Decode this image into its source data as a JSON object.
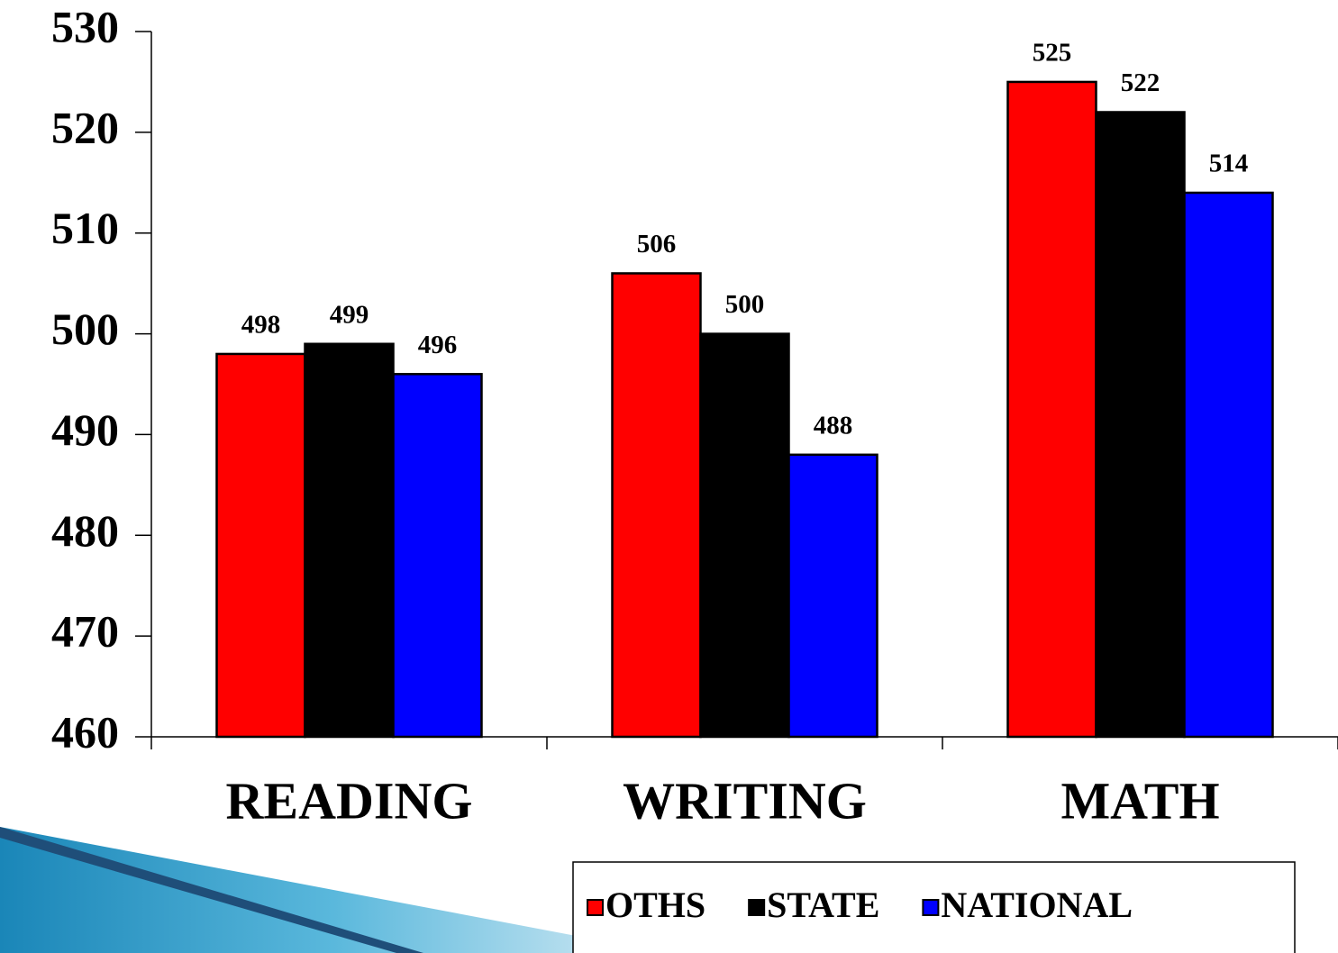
{
  "chart_data": {
    "type": "bar",
    "categories": [
      "READING",
      "WRITING",
      "MATH"
    ],
    "series": [
      {
        "name": "OTHS",
        "color": "#ff0000",
        "values": [
          498,
          506,
          525
        ]
      },
      {
        "name": "STATE",
        "color": "#000000",
        "values": [
          499,
          500,
          522
        ]
      },
      {
        "name": "NATIONAL",
        "color": "#0000ff",
        "values": [
          496,
          488,
          514
        ]
      }
    ],
    "ylim": [
      460,
      530
    ],
    "yticks": [
      460,
      470,
      480,
      490,
      500,
      510,
      520,
      530
    ],
    "grid": false,
    "legend": "bottom"
  }
}
